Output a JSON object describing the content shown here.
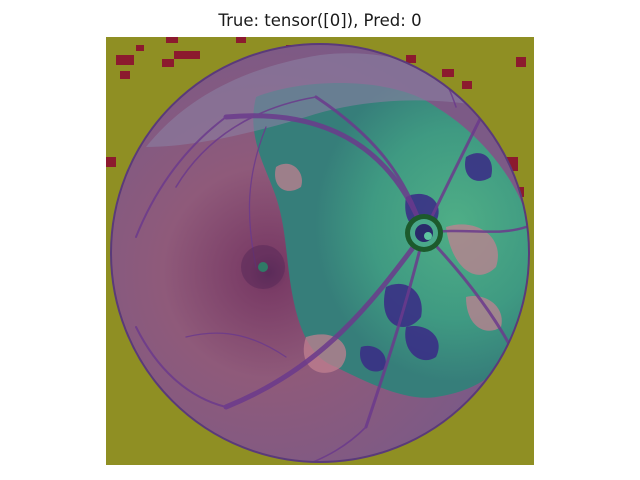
{
  "figure": {
    "title": "True: tensor([0]), Pred: 0"
  },
  "image": {
    "subject": "fundus-retina-photo",
    "background_color": "#8f8f23",
    "colors": {
      "left_retina": "#8a5a7a",
      "right_retina": "#3f9a82",
      "optic_disc_ring": "#1c5a2c",
      "vessels": "#6b3a8c",
      "noise_red": "#8c1a2e",
      "dark_patches": "#3a2a86"
    }
  }
}
